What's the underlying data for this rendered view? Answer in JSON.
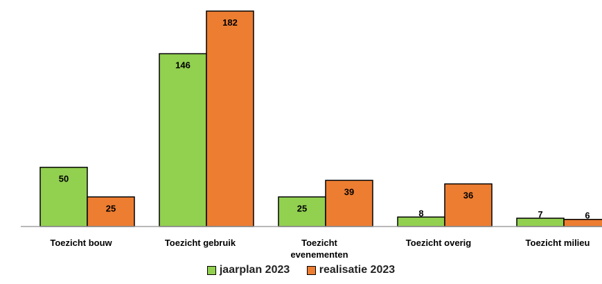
{
  "chart_data": {
    "type": "bar",
    "categories": [
      [
        "Toezicht bouw"
      ],
      [
        "Toezicht gebruik"
      ],
      [
        "Toezicht",
        "evenementen"
      ],
      [
        "Toezicht overig"
      ],
      [
        "Toezicht milieu"
      ]
    ],
    "series": [
      {
        "name": "jaarplan 2023",
        "values": [
          50,
          146,
          25,
          8,
          7
        ],
        "color": "#92d050"
      },
      {
        "name": "realisatie 2023",
        "values": [
          25,
          182,
          39,
          36,
          6
        ],
        "color": "#ed7d31"
      }
    ],
    "ylim": [
      0,
      182
    ],
    "grid": false,
    "legend_position": "bottom"
  }
}
